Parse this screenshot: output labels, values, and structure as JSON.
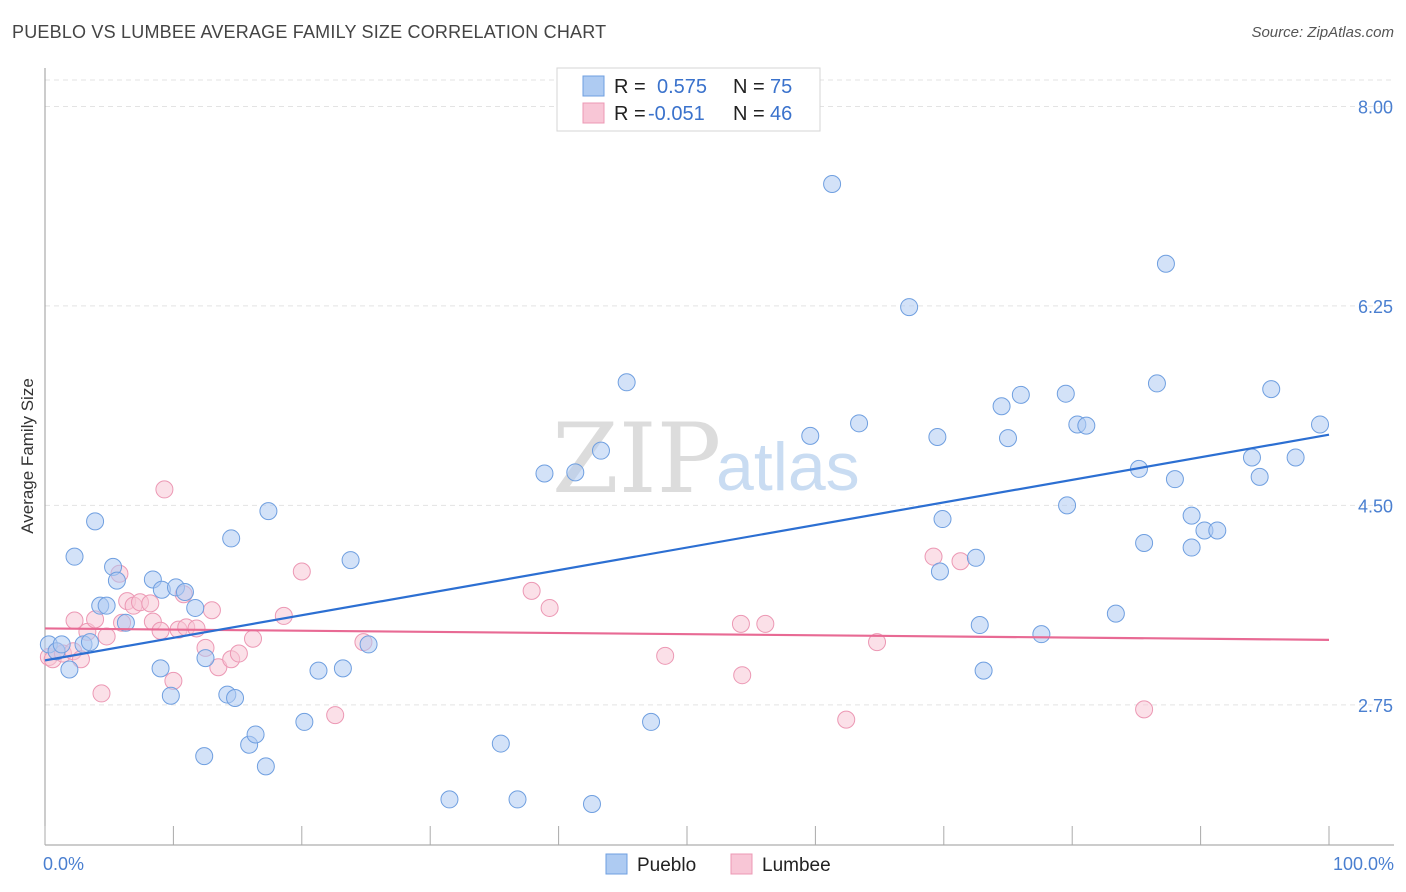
{
  "header": {
    "title": "PUEBLO VS LUMBEE AVERAGE FAMILY SIZE CORRELATION CHART",
    "source": "Source: ZipAtlas.com"
  },
  "watermark": {
    "zip": "ZIP",
    "atlas": "atlas"
  },
  "colors": {
    "pueblo_fill": "#aecbf2",
    "pueblo_stroke": "#6f9fe0",
    "pueblo_line": "#2c6fd2",
    "lumbee_fill": "#f8c6d6",
    "lumbee_stroke": "#ec98b4",
    "lumbee_line": "#e86a94",
    "tick_text": "#4a7fd0",
    "grid": "#e3e3e3"
  },
  "legend": {
    "rows": [
      {
        "r_label": "R =",
        "r_value": "0.575",
        "n_label": "N =",
        "n_value": "75"
      },
      {
        "r_label": "R =",
        "r_value": "-0.051",
        "n_label": "N =",
        "n_value": "46"
      }
    ]
  },
  "bottom_legend": {
    "pueblo": "Pueblo",
    "lumbee": "Lumbee"
  },
  "chart_data": {
    "type": "scatter",
    "title": "PUEBLO VS LUMBEE AVERAGE FAMILY SIZE CORRELATION CHART",
    "xlabel": "",
    "ylabel": "Average Family Size",
    "xlim": [
      0,
      100
    ],
    "ylim": [
      1.52,
      8.25
    ],
    "y_ticks": [
      2.75,
      4.5,
      6.25,
      8.0
    ],
    "y_tick_labels": [
      "2.75",
      "4.50",
      "6.25",
      "8.00"
    ],
    "x_tick_labels": [
      "0.0%",
      "100.0%"
    ],
    "x_minor_ticks": [
      0,
      10,
      20,
      30,
      40,
      50,
      60,
      70,
      80,
      90,
      100
    ],
    "series": [
      {
        "name": "Pueblo",
        "r": 0.575,
        "n": 75,
        "trend": {
          "x": [
            0,
            100
          ],
          "y": [
            3.14,
            5.12
          ]
        },
        "points": [
          [
            0.3,
            3.28
          ],
          [
            0.9,
            3.22
          ],
          [
            1.3,
            3.28
          ],
          [
            1.9,
            3.06
          ],
          [
            2.3,
            4.05
          ],
          [
            3.0,
            3.28
          ],
          [
            3.5,
            3.3
          ],
          [
            3.9,
            4.36
          ],
          [
            4.3,
            3.62
          ],
          [
            4.8,
            3.62
          ],
          [
            5.3,
            3.96
          ],
          [
            5.6,
            3.84
          ],
          [
            6.3,
            3.47
          ],
          [
            8.4,
            3.85
          ],
          [
            9.1,
            3.76
          ],
          [
            9.0,
            3.07
          ],
          [
            9.8,
            2.83
          ],
          [
            10.2,
            3.78
          ],
          [
            10.9,
            3.74
          ],
          [
            11.7,
            3.6
          ],
          [
            12.4,
            2.3
          ],
          [
            12.5,
            3.16
          ],
          [
            14.2,
            2.84
          ],
          [
            14.5,
            4.21
          ],
          [
            14.8,
            2.81
          ],
          [
            15.9,
            2.4
          ],
          [
            16.4,
            2.49
          ],
          [
            17.2,
            2.21
          ],
          [
            17.4,
            4.45
          ],
          [
            20.2,
            2.6
          ],
          [
            21.3,
            3.05
          ],
          [
            23.2,
            3.07
          ],
          [
            23.8,
            4.02
          ],
          [
            25.2,
            3.28
          ],
          [
            31.5,
            1.92
          ],
          [
            35.5,
            2.41
          ],
          [
            36.8,
            1.92
          ],
          [
            38.9,
            4.78
          ],
          [
            41.3,
            4.79
          ],
          [
            42.6,
            1.88
          ],
          [
            43.3,
            4.98
          ],
          [
            45.3,
            5.58
          ],
          [
            47.2,
            2.6
          ],
          [
            59.6,
            5.11
          ],
          [
            61.3,
            7.32
          ],
          [
            63.4,
            5.22
          ],
          [
            67.3,
            6.24
          ],
          [
            69.7,
            3.92
          ],
          [
            69.5,
            5.1
          ],
          [
            69.9,
            4.38
          ],
          [
            72.5,
            4.04
          ],
          [
            72.8,
            3.45
          ],
          [
            73.1,
            3.05
          ],
          [
            74.5,
            5.37
          ],
          [
            75.0,
            5.09
          ],
          [
            76.0,
            5.47
          ],
          [
            77.6,
            3.37
          ],
          [
            79.6,
            4.5
          ],
          [
            79.5,
            5.48
          ],
          [
            80.4,
            5.21
          ],
          [
            81.1,
            5.2
          ],
          [
            83.4,
            3.55
          ],
          [
            85.2,
            4.82
          ],
          [
            85.6,
            4.17
          ],
          [
            86.6,
            5.57
          ],
          [
            87.3,
            6.62
          ],
          [
            88.0,
            4.73
          ],
          [
            89.3,
            4.41
          ],
          [
            89.3,
            4.13
          ],
          [
            90.3,
            4.28
          ],
          [
            91.3,
            4.28
          ],
          [
            94.0,
            4.92
          ],
          [
            94.6,
            4.75
          ],
          [
            95.5,
            5.52
          ],
          [
            97.4,
            4.92
          ],
          [
            99.3,
            5.21
          ]
        ]
      },
      {
        "name": "Lumbee",
        "r": -0.051,
        "n": 46,
        "trend": {
          "x": [
            0,
            100
          ],
          "y": [
            3.42,
            3.32
          ]
        },
        "points": [
          [
            0.3,
            3.17
          ],
          [
            0.6,
            3.15
          ],
          [
            0.9,
            3.22
          ],
          [
            1.4,
            3.2
          ],
          [
            2.2,
            3.22
          ],
          [
            2.3,
            3.49
          ],
          [
            2.8,
            3.15
          ],
          [
            3.3,
            3.39
          ],
          [
            3.9,
            3.5
          ],
          [
            4.4,
            2.85
          ],
          [
            4.8,
            3.35
          ],
          [
            5.8,
            3.9
          ],
          [
            6.0,
            3.47
          ],
          [
            6.4,
            3.66
          ],
          [
            6.9,
            3.62
          ],
          [
            7.4,
            3.65
          ],
          [
            8.2,
            3.64
          ],
          [
            8.4,
            3.48
          ],
          [
            9.0,
            3.4
          ],
          [
            9.3,
            4.64
          ],
          [
            10.0,
            2.96
          ],
          [
            10.4,
            3.41
          ],
          [
            10.8,
            3.72
          ],
          [
            11.0,
            3.43
          ],
          [
            11.8,
            3.42
          ],
          [
            12.5,
            3.25
          ],
          [
            13.0,
            3.58
          ],
          [
            13.5,
            3.08
          ],
          [
            14.5,
            3.15
          ],
          [
            15.1,
            3.2
          ],
          [
            16.2,
            3.33
          ],
          [
            18.6,
            3.53
          ],
          [
            20.0,
            3.92
          ],
          [
            22.6,
            2.66
          ],
          [
            24.8,
            3.3
          ],
          [
            37.9,
            3.75
          ],
          [
            39.3,
            3.6
          ],
          [
            48.3,
            3.18
          ],
          [
            54.3,
            3.01
          ],
          [
            54.2,
            3.46
          ],
          [
            56.1,
            3.46
          ],
          [
            62.4,
            2.62
          ],
          [
            64.8,
            3.3
          ],
          [
            69.2,
            4.05
          ],
          [
            71.3,
            4.01
          ],
          [
            85.6,
            2.71
          ]
        ]
      }
    ]
  }
}
